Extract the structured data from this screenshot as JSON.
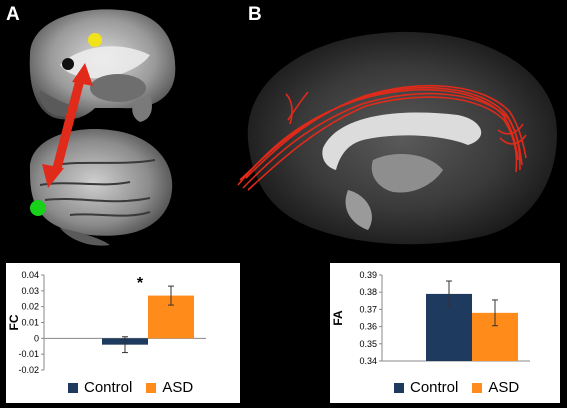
{
  "panels": {
    "a_label": "A",
    "b_label": "B"
  },
  "colors": {
    "control": "#1f3a5f",
    "asd": "#ff8c1a",
    "tract": "#e02a1a",
    "seed_yellow": "#f2e21a",
    "seed_green": "#18d11a"
  },
  "chart_data": [
    {
      "type": "bar",
      "ylabel": "FC",
      "categories": [
        "Control",
        "ASD"
      ],
      "values": [
        -0.004,
        0.027
      ],
      "errors": [
        0.005,
        0.006
      ],
      "ylim": [
        -0.02,
        0.04
      ],
      "yticks": [
        "0.04",
        "0.03",
        "0.02",
        "0.01",
        "0",
        "-0.01",
        "-0.02"
      ],
      "annotation": "*",
      "legend": [
        "Control",
        "ASD"
      ]
    },
    {
      "type": "bar",
      "ylabel": "FA",
      "categories": [
        "Control",
        "ASD"
      ],
      "values": [
        0.379,
        0.368
      ],
      "errors": [
        0.0075,
        0.0075
      ],
      "ylim": [
        0.34,
        0.39
      ],
      "yticks": [
        "0.39",
        "0.38",
        "0.37",
        "0.36",
        "0.35",
        "0.34"
      ],
      "legend": [
        "Control",
        "ASD"
      ]
    }
  ]
}
